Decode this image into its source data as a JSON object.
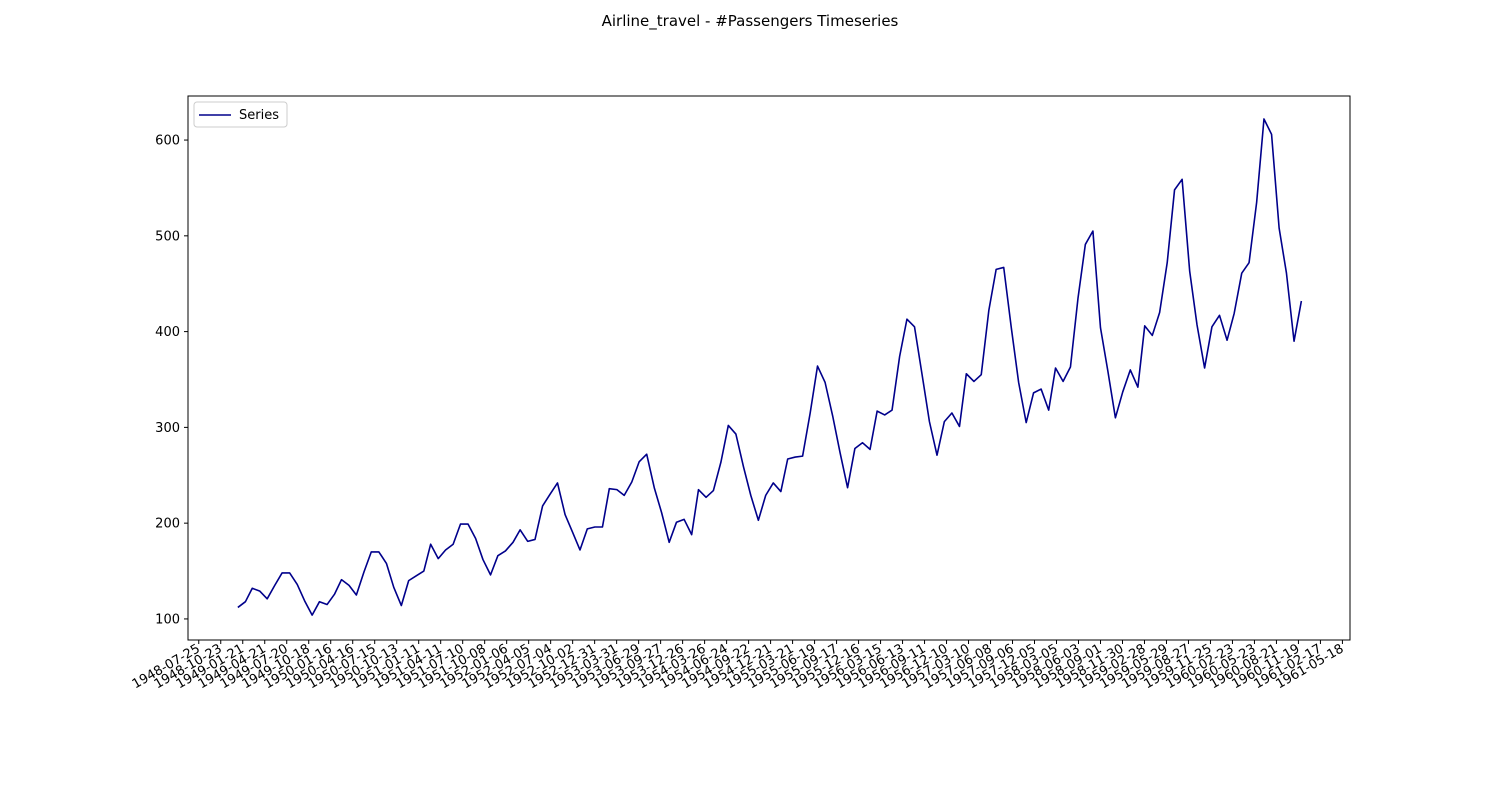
{
  "chart_data": {
    "type": "line",
    "title": "Airline_travel - #Passengers Timeseries",
    "xlabel": "",
    "ylabel": "",
    "x_range": [
      "1948-06-11",
      "1961-06-18"
    ],
    "ylim": [
      78,
      646
    ],
    "grid": false,
    "legend_placement": "top-left",
    "y_ticks": [
      100,
      200,
      300,
      400,
      500,
      600
    ],
    "x_ticks": [
      "1948-07-25",
      "1948-10-23",
      "1949-01-21",
      "1949-04-21",
      "1949-07-20",
      "1949-10-18",
      "1950-01-16",
      "1950-04-16",
      "1950-07-15",
      "1950-10-13",
      "1951-01-11",
      "1951-04-11",
      "1951-07-10",
      "1951-10-08",
      "1952-01-06",
      "1952-04-05",
      "1952-07-04",
      "1952-10-02",
      "1952-12-31",
      "1953-03-31",
      "1953-06-29",
      "1953-09-27",
      "1953-12-26",
      "1954-03-26",
      "1954-06-24",
      "1954-09-22",
      "1954-12-21",
      "1955-03-21",
      "1955-06-19",
      "1955-09-17",
      "1955-12-16",
      "1956-03-15",
      "1956-06-13",
      "1956-09-11",
      "1956-12-10",
      "1957-03-10",
      "1957-06-08",
      "1957-09-06",
      "1957-12-05",
      "1958-03-05",
      "1958-06-03",
      "1958-09-01",
      "1958-11-30",
      "1959-02-28",
      "1959-05-29",
      "1959-08-27",
      "1959-11-25",
      "1960-02-23",
      "1960-05-23",
      "1960-08-21",
      "1960-11-19",
      "1961-02-17",
      "1961-05-18"
    ],
    "series": [
      {
        "name": "Series",
        "color": "#00008b",
        "x": [
          "1949-01",
          "1949-02",
          "1949-03",
          "1949-04",
          "1949-05",
          "1949-06",
          "1949-07",
          "1949-08",
          "1949-09",
          "1949-10",
          "1949-11",
          "1949-12",
          "1950-01",
          "1950-02",
          "1950-03",
          "1950-04",
          "1950-05",
          "1950-06",
          "1950-07",
          "1950-08",
          "1950-09",
          "1950-10",
          "1950-11",
          "1950-12",
          "1951-01",
          "1951-02",
          "1951-03",
          "1951-04",
          "1951-05",
          "1951-06",
          "1951-07",
          "1951-08",
          "1951-09",
          "1951-10",
          "1951-11",
          "1951-12",
          "1952-01",
          "1952-02",
          "1952-03",
          "1952-04",
          "1952-05",
          "1952-06",
          "1952-07",
          "1952-08",
          "1952-09",
          "1952-10",
          "1952-11",
          "1952-12",
          "1953-01",
          "1953-02",
          "1953-03",
          "1953-04",
          "1953-05",
          "1953-06",
          "1953-07",
          "1953-08",
          "1953-09",
          "1953-10",
          "1953-11",
          "1953-12",
          "1954-01",
          "1954-02",
          "1954-03",
          "1954-04",
          "1954-05",
          "1954-06",
          "1954-07",
          "1954-08",
          "1954-09",
          "1954-10",
          "1954-11",
          "1954-12",
          "1955-01",
          "1955-02",
          "1955-03",
          "1955-04",
          "1955-05",
          "1955-06",
          "1955-07",
          "1955-08",
          "1955-09",
          "1955-10",
          "1955-11",
          "1955-12",
          "1956-01",
          "1956-02",
          "1956-03",
          "1956-04",
          "1956-05",
          "1956-06",
          "1956-07",
          "1956-08",
          "1956-09",
          "1956-10",
          "1956-11",
          "1956-12",
          "1957-01",
          "1957-02",
          "1957-03",
          "1957-04",
          "1957-05",
          "1957-06",
          "1957-07",
          "1957-08",
          "1957-09",
          "1957-10",
          "1957-11",
          "1957-12",
          "1958-01",
          "1958-02",
          "1958-03",
          "1958-04",
          "1958-05",
          "1958-06",
          "1958-07",
          "1958-08",
          "1958-09",
          "1958-10",
          "1958-11",
          "1958-12",
          "1959-01",
          "1959-02",
          "1959-03",
          "1959-04",
          "1959-05",
          "1959-06",
          "1959-07",
          "1959-08",
          "1959-09",
          "1959-10",
          "1959-11",
          "1959-12",
          "1960-01",
          "1960-02",
          "1960-03",
          "1960-04",
          "1960-05",
          "1960-06",
          "1960-07",
          "1960-08",
          "1960-09",
          "1960-10",
          "1960-11",
          "1960-12"
        ],
        "values": [
          112,
          118,
          132,
          129,
          121,
          135,
          148,
          148,
          136,
          119,
          104,
          118,
          115,
          126,
          141,
          135,
          125,
          149,
          170,
          170,
          158,
          133,
          114,
          140,
          145,
          150,
          178,
          163,
          172,
          178,
          199,
          199,
          184,
          162,
          146,
          166,
          171,
          180,
          193,
          181,
          183,
          218,
          230,
          242,
          209,
          191,
          172,
          194,
          196,
          196,
          236,
          235,
          229,
          243,
          264,
          272,
          237,
          211,
          180,
          201,
          204,
          188,
          235,
          227,
          234,
          264,
          302,
          293,
          259,
          229,
          203,
          229,
          242,
          233,
          267,
          269,
          270,
          315,
          364,
          347,
          312,
          274,
          237,
          278,
          284,
          277,
          317,
          313,
          318,
          374,
          413,
          405,
          355,
          306,
          271,
          306,
          315,
          301,
          356,
          348,
          355,
          422,
          465,
          467,
          404,
          347,
          305,
          336,
          340,
          318,
          362,
          348,
          363,
          435,
          491,
          505,
          404,
          359,
          310,
          337,
          360,
          342,
          406,
          396,
          420,
          472,
          548,
          559,
          463,
          407,
          362,
          405,
          417,
          391,
          419,
          461,
          472,
          535,
          622,
          606,
          508,
          461,
          390,
          432
        ]
      }
    ]
  }
}
